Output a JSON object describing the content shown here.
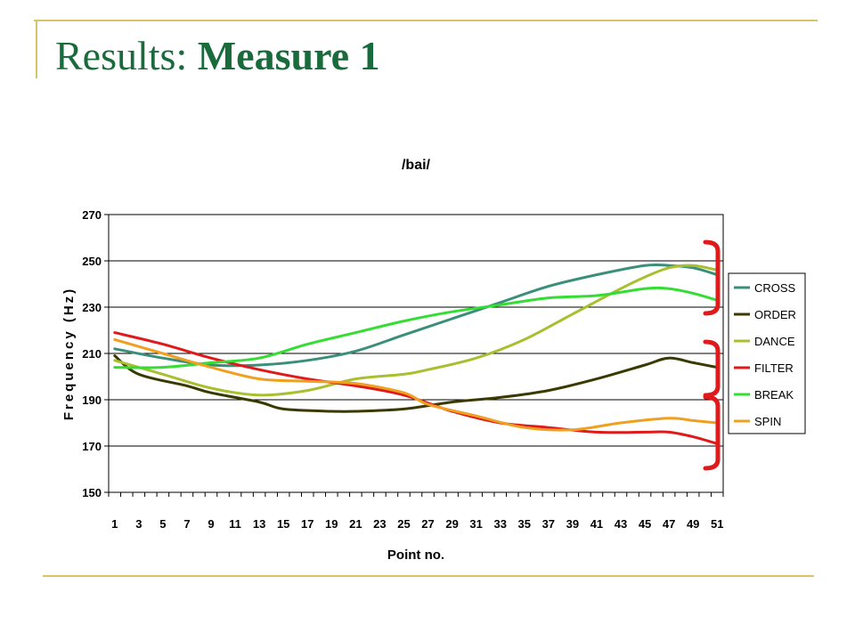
{
  "slide": {
    "title_prefix": "Results: ",
    "title_bold": "Measure 1"
  },
  "chart_data": {
    "type": "line",
    "title": "/bai/",
    "xlabel": "Point no.",
    "ylabel": "Frequency (Hz)",
    "ylim": [
      150,
      270
    ],
    "yticks": [
      150,
      170,
      190,
      210,
      230,
      250,
      270
    ],
    "xlim": [
      1,
      51
    ],
    "xtick_labels": [
      "1",
      "3",
      "5",
      "7",
      "9",
      "11",
      "13",
      "15",
      "17",
      "19",
      "21",
      "23",
      "25",
      "27",
      "29",
      "31",
      "33",
      "35",
      "37",
      "39",
      "41",
      "43",
      "45",
      "47",
      "49",
      "51"
    ],
    "grid": "horizontal",
    "legend_position": "right",
    "series": [
      {
        "name": "CROSS",
        "color": "#3a8f7a",
        "points": [
          [
            1,
            212
          ],
          [
            5,
            208
          ],
          [
            9,
            205
          ],
          [
            13,
            205
          ],
          [
            17,
            207
          ],
          [
            21,
            211
          ],
          [
            25,
            218
          ],
          [
            29,
            225
          ],
          [
            33,
            232
          ],
          [
            37,
            239
          ],
          [
            41,
            244
          ],
          [
            45,
            248
          ],
          [
            47,
            248
          ],
          [
            49,
            247
          ],
          [
            51,
            244
          ]
        ]
      },
      {
        "name": "ORDER",
        "color": "#3a3a00",
        "points": [
          [
            1,
            209
          ],
          [
            3,
            201
          ],
          [
            7,
            196
          ],
          [
            9,
            193
          ],
          [
            13,
            189
          ],
          [
            15,
            186
          ],
          [
            19,
            185
          ],
          [
            21,
            185
          ],
          [
            25,
            186
          ],
          [
            29,
            189
          ],
          [
            33,
            191
          ],
          [
            37,
            194
          ],
          [
            41,
            199
          ],
          [
            45,
            205
          ],
          [
            47,
            208
          ],
          [
            49,
            206
          ],
          [
            51,
            204
          ]
        ]
      },
      {
        "name": "DANCE",
        "color": "#a8c030",
        "points": [
          [
            1,
            207
          ],
          [
            5,
            201
          ],
          [
            9,
            195
          ],
          [
            13,
            192
          ],
          [
            17,
            194
          ],
          [
            21,
            199
          ],
          [
            25,
            201
          ],
          [
            27,
            203
          ],
          [
            31,
            208
          ],
          [
            35,
            216
          ],
          [
            39,
            227
          ],
          [
            43,
            238
          ],
          [
            45,
            243
          ],
          [
            47,
            247
          ],
          [
            49,
            248
          ],
          [
            51,
            246
          ]
        ]
      },
      {
        "name": "FILTER",
        "color": "#e01a1a",
        "points": [
          [
            1,
            219
          ],
          [
            5,
            214
          ],
          [
            9,
            208
          ],
          [
            13,
            203
          ],
          [
            17,
            199
          ],
          [
            21,
            196
          ],
          [
            25,
            192
          ],
          [
            29,
            185
          ],
          [
            33,
            180
          ],
          [
            37,
            178
          ],
          [
            41,
            176
          ],
          [
            45,
            176
          ],
          [
            47,
            176
          ],
          [
            49,
            174
          ],
          [
            51,
            171
          ]
        ]
      },
      {
        "name": "BREAK",
        "color": "#33dd33",
        "points": [
          [
            1,
            204
          ],
          [
            5,
            204
          ],
          [
            9,
            206
          ],
          [
            13,
            208
          ],
          [
            17,
            214
          ],
          [
            21,
            219
          ],
          [
            25,
            224
          ],
          [
            29,
            228
          ],
          [
            33,
            231
          ],
          [
            37,
            234
          ],
          [
            41,
            235
          ],
          [
            45,
            238
          ],
          [
            47,
            238
          ],
          [
            49,
            236
          ],
          [
            51,
            233
          ]
        ]
      },
      {
        "name": "SPIN",
        "color": "#f0a020",
        "points": [
          [
            1,
            216
          ],
          [
            5,
            210
          ],
          [
            9,
            204
          ],
          [
            13,
            199
          ],
          [
            17,
            198
          ],
          [
            21,
            197
          ],
          [
            25,
            193
          ],
          [
            27,
            188
          ],
          [
            31,
            183
          ],
          [
            35,
            178
          ],
          [
            39,
            177
          ],
          [
            43,
            180
          ],
          [
            47,
            182
          ],
          [
            49,
            181
          ],
          [
            51,
            180
          ]
        ]
      }
    ],
    "annotations": {
      "bracket_color": "#e01a1a"
    }
  }
}
